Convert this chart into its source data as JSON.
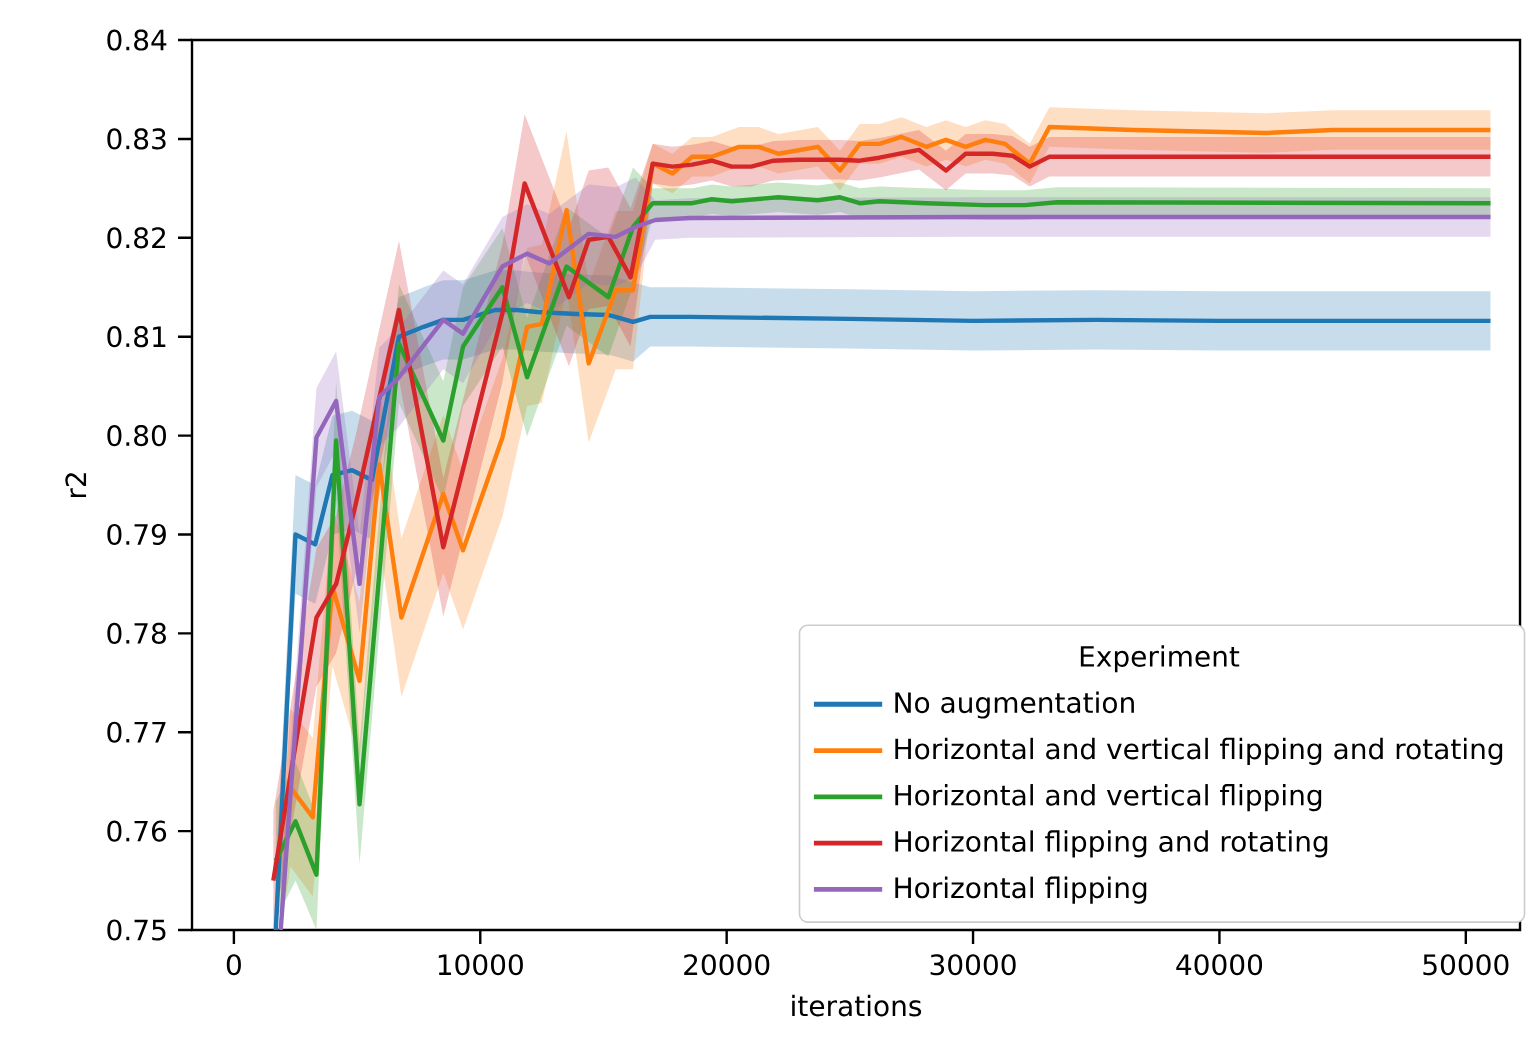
{
  "chart_data": {
    "type": "line",
    "xlabel": "iterations",
    "ylabel": "r2",
    "legend_title": "Experiment",
    "legend": "bottom right",
    "grid": false,
    "xlim": [
      -1700,
      52200
    ],
    "ylim": [
      0.75,
      0.84
    ],
    "xticks": [
      0,
      10000,
      20000,
      30000,
      40000,
      50000
    ],
    "yticks": [
      {
        "value": 0.75,
        "label": "0.75"
      },
      {
        "value": 0.76,
        "label": "0.76"
      },
      {
        "value": 0.77,
        "label": "0.77"
      },
      {
        "value": 0.78,
        "label": "0.78"
      },
      {
        "value": 0.79,
        "label": "0.79"
      },
      {
        "value": 0.8,
        "label": "0.80"
      },
      {
        "value": 0.81,
        "label": "0.81"
      },
      {
        "value": 0.82,
        "label": "0.82"
      },
      {
        "value": 0.83,
        "label": "0.83"
      },
      {
        "value": 0.84,
        "label": "0.84"
      }
    ],
    "series": [
      {
        "name": "No augmentation",
        "color": "#1f77b4",
        "x": [
          1700,
          2500,
          3300,
          4000,
          4800,
          5600,
          6700,
          7700,
          8500,
          9300,
          10600,
          11500,
          12300,
          13900,
          15200,
          16200,
          16900,
          18500,
          25000,
          30000,
          35000,
          40000,
          45000,
          51000
        ],
        "values": [
          0.75,
          0.79,
          0.789,
          0.796,
          0.7965,
          0.7955,
          0.81,
          0.811,
          0.8117,
          0.8117,
          0.8127,
          0.8127,
          0.8125,
          0.8123,
          0.8122,
          0.8115,
          0.812,
          0.812,
          0.8118,
          0.8116,
          0.8117,
          0.8116,
          0.8116,
          0.8116
        ],
        "lower": [
          0.75,
          0.784,
          0.783,
          0.79,
          0.7905,
          0.7895,
          0.806,
          0.807,
          0.8077,
          0.8077,
          0.8087,
          0.8087,
          0.8085,
          0.8083,
          0.8082,
          0.8075,
          0.809,
          0.809,
          0.8088,
          0.8086,
          0.8087,
          0.8086,
          0.8086,
          0.8086
        ],
        "upper": [
          0.756,
          0.796,
          0.795,
          0.802,
          0.8025,
          0.8015,
          0.814,
          0.815,
          0.8157,
          0.8157,
          0.8167,
          0.8167,
          0.8165,
          0.8163,
          0.8162,
          0.8155,
          0.815,
          0.815,
          0.8148,
          0.8146,
          0.8147,
          0.8146,
          0.8146,
          0.8146
        ]
      },
      {
        "name": "Horizontal and vertical flipping and rotating",
        "color": "#ff7f0e",
        "x": [
          1900,
          2300,
          3200,
          4000,
          5100,
          5900,
          6800,
          8500,
          9300,
          10900,
          11900,
          12500,
          13500,
          14400,
          15500,
          16200,
          17000,
          17800,
          18600,
          19400,
          20500,
          21300,
          22100,
          23700,
          24600,
          25400,
          26200,
          27100,
          28100,
          28900,
          29700,
          30500,
          31300,
          32300,
          33100,
          36500,
          41900,
          44600,
          51000
        ],
        "values": [
          null,
          0.7644,
          0.7614,
          0.7847,
          0.7752,
          0.7971,
          0.7816,
          0.7941,
          0.7884,
          0.7998,
          0.811,
          0.8113,
          0.8228,
          0.8073,
          0.8147,
          0.8147,
          0.8275,
          0.8265,
          0.8282,
          0.8282,
          0.8292,
          0.8292,
          0.8285,
          0.8292,
          0.8268,
          0.8295,
          0.8295,
          0.8302,
          0.8292,
          0.8299,
          0.8292,
          0.8299,
          0.8295,
          0.8275,
          0.8312,
          0.8309,
          0.8306,
          0.8309,
          0.8309
        ],
        "lower": [
          0.75,
          0.7564,
          0.7534,
          0.7767,
          0.7672,
          0.7891,
          0.7736,
          0.7861,
          0.7804,
          0.7918,
          0.803,
          0.8033,
          0.8148,
          0.7993,
          0.8067,
          0.8067,
          0.8255,
          0.8245,
          0.8262,
          0.8262,
          0.8272,
          0.8272,
          0.8265,
          0.8272,
          0.8248,
          0.8275,
          0.8275,
          0.8282,
          0.8272,
          0.8279,
          0.8272,
          0.8279,
          0.8275,
          0.8255,
          0.8292,
          0.8289,
          0.8286,
          0.8289,
          0.8289
        ],
        "upper": [
          0.758,
          0.7724,
          0.7694,
          0.7927,
          0.7832,
          0.8051,
          0.7896,
          0.8021,
          0.7964,
          0.8078,
          0.819,
          0.8193,
          0.8308,
          0.8153,
          0.8227,
          0.8227,
          0.8295,
          0.8285,
          0.8302,
          0.8302,
          0.8312,
          0.8312,
          0.8305,
          0.8312,
          0.8288,
          0.8315,
          0.8315,
          0.8322,
          0.8312,
          0.8319,
          0.8312,
          0.8319,
          0.8315,
          0.8295,
          0.8332,
          0.8329,
          0.8326,
          0.8329,
          0.8329
        ]
      },
      {
        "name": "Horizontal and vertical flipping",
        "color": "#2ca02c",
        "x": [
          1700,
          2500,
          3350,
          4150,
          5100,
          6700,
          8500,
          9300,
          10900,
          11900,
          13500,
          15200,
          16200,
          17000,
          18600,
          19400,
          20200,
          22100,
          23700,
          24600,
          25400,
          26200,
          28100,
          30500,
          32100,
          33400,
          51000
        ],
        "values": [
          0.757,
          0.761,
          0.7556,
          0.7995,
          0.7627,
          0.8093,
          0.7995,
          0.809,
          0.815,
          0.8059,
          0.8171,
          0.814,
          0.8211,
          0.8235,
          0.8235,
          0.8239,
          0.8237,
          0.8241,
          0.8238,
          0.8241,
          0.8235,
          0.8237,
          0.8235,
          0.8233,
          0.8233,
          0.8236,
          0.8235
        ],
        "lower": [
          0.751,
          0.755,
          0.75,
          0.7935,
          0.7567,
          0.8033,
          0.7935,
          0.803,
          0.809,
          0.7999,
          0.8111,
          0.808,
          0.8151,
          0.822,
          0.822,
          0.8224,
          0.8222,
          0.8226,
          0.8223,
          0.8226,
          0.822,
          0.8222,
          0.822,
          0.8218,
          0.8218,
          0.8221,
          0.822
        ],
        "upper": [
          0.763,
          0.767,
          0.7616,
          0.8055,
          0.7687,
          0.8153,
          0.8055,
          0.815,
          0.821,
          0.8119,
          0.8231,
          0.82,
          0.8271,
          0.825,
          0.825,
          0.8254,
          0.8252,
          0.8256,
          0.8253,
          0.8256,
          0.825,
          0.8252,
          0.825,
          0.8248,
          0.8248,
          0.8251,
          0.825
        ]
      },
      {
        "name": "Horizontal flipping and rotating",
        "color": "#d62728",
        "x": [
          1600,
          3350,
          4150,
          4950,
          6700,
          8500,
          10900,
          11800,
          13600,
          14400,
          15200,
          16100,
          17000,
          17800,
          18600,
          19400,
          20200,
          21000,
          21900,
          22900,
          24600,
          25400,
          26200,
          27800,
          28900,
          29700,
          30800,
          31600,
          32300,
          33100,
          36500,
          51000
        ],
        "values": [
          0.755,
          0.7816,
          0.785,
          0.7931,
          0.8127,
          0.7887,
          0.8124,
          0.8255,
          0.814,
          0.8198,
          0.8201,
          0.816,
          0.8275,
          0.8272,
          0.8274,
          0.8278,
          0.8272,
          0.8272,
          0.8278,
          0.8279,
          0.8279,
          0.8278,
          0.8281,
          0.8289,
          0.8268,
          0.8285,
          0.8285,
          0.8283,
          0.8272,
          0.8282,
          0.8282,
          0.8282
        ],
        "lower": [
          0.75,
          0.7746,
          0.778,
          0.7861,
          0.8057,
          0.7817,
          0.8054,
          0.8185,
          0.807,
          0.8128,
          0.8131,
          0.809,
          0.8255,
          0.8252,
          0.8254,
          0.8258,
          0.8252,
          0.8252,
          0.8258,
          0.8259,
          0.8259,
          0.8258,
          0.8261,
          0.8269,
          0.8248,
          0.8265,
          0.8265,
          0.8263,
          0.8252,
          0.8262,
          0.8262,
          0.8262
        ],
        "upper": [
          0.762,
          0.7886,
          0.792,
          0.8001,
          0.8197,
          0.7957,
          0.8194,
          0.8325,
          0.821,
          0.8268,
          0.8271,
          0.823,
          0.8295,
          0.8292,
          0.8294,
          0.8298,
          0.8292,
          0.8292,
          0.8298,
          0.8299,
          0.8299,
          0.8298,
          0.8301,
          0.8309,
          0.8288,
          0.8305,
          0.8305,
          0.8303,
          0.8292,
          0.8302,
          0.8302,
          0.8302
        ]
      },
      {
        "name": "Horizontal flipping",
        "color": "#9467bd",
        "x": [
          1900,
          3350,
          4150,
          5100,
          5900,
          6700,
          8500,
          9300,
          10900,
          11900,
          12800,
          14400,
          15500,
          16300,
          17100,
          18500,
          30000,
          51000
        ],
        "values": [
          0.75,
          0.7998,
          0.8035,
          0.785,
          0.8039,
          0.8059,
          0.8117,
          0.8103,
          0.8171,
          0.8184,
          0.8174,
          0.8204,
          0.8201,
          0.8211,
          0.8218,
          0.822,
          0.8221,
          0.8221
        ],
        "lower": [
          0.75,
          0.7948,
          0.7985,
          0.78,
          0.7989,
          0.8009,
          0.8067,
          0.8053,
          0.8121,
          0.8134,
          0.8124,
          0.8154,
          0.8151,
          0.8161,
          0.8198,
          0.82,
          0.8201,
          0.8201
        ],
        "upper": [
          0.755,
          0.8048,
          0.8085,
          0.79,
          0.8089,
          0.8109,
          0.8167,
          0.8153,
          0.8221,
          0.8234,
          0.8224,
          0.8254,
          0.8251,
          0.8261,
          0.8238,
          0.824,
          0.8241,
          0.8241
        ]
      }
    ]
  }
}
